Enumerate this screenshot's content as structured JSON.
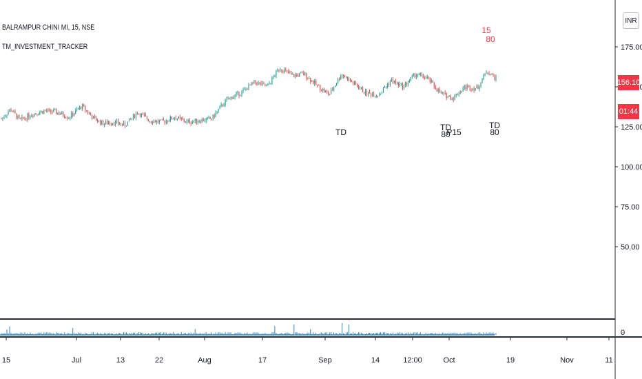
{
  "legend": {
    "symbol": "BALRAMPUR CHINI MI, 15, NSE",
    "indicator": "TM_INVESTMENT_TRACKER"
  },
  "price_tag": "156.10",
  "countdown_tag": "01:44",
  "currency_button": "INR",
  "colors": {
    "up": "#26a69a",
    "down": "#ef5350",
    "price_tag": "#f23645",
    "volume": "#2e86c1",
    "marker_red": "#f23645"
  },
  "chart_data": {
    "type": "line",
    "subtype": "candlestick",
    "title": "BALRAMPUR CHINI MI, 15, NSE",
    "y_ticks": [
      "175.00",
      "150.00",
      "125.00",
      "100.00",
      "75.00",
      "50.00"
    ],
    "y_tick_values": [
      175,
      150,
      125,
      100,
      75,
      50
    ],
    "ylim": [
      41,
      196
    ],
    "x_ticks": [
      "15",
      "Jul",
      "13",
      "22",
      "Aug",
      "17",
      "Sep",
      "14",
      "12:00",
      "Oct",
      "19",
      "Nov",
      "11"
    ],
    "price_path": {
      "x_index": [
        0,
        3,
        6,
        10,
        14,
        18,
        22,
        26,
        30,
        33,
        36,
        40,
        44,
        48,
        52,
        56,
        60,
        64,
        68,
        72,
        74,
        78,
        82,
        86,
        90,
        94,
        98,
        102,
        106,
        110,
        114,
        118,
        122,
        126,
        130,
        134,
        138,
        142,
        146,
        150,
        154,
        157,
        160
      ],
      "values": [
        130,
        136,
        129,
        133,
        135,
        134,
        131,
        138,
        130,
        127,
        128,
        126,
        134,
        129,
        128,
        131,
        128,
        129,
        130,
        140,
        143,
        147,
        153,
        150,
        162,
        157,
        158,
        151,
        145,
        158,
        152,
        146,
        145,
        154,
        150,
        158,
        155,
        146,
        143,
        150,
        149,
        160,
        155
      ]
    },
    "last_price": 156.1,
    "markers": [
      {
        "text": "TD",
        "color": "black"
      },
      {
        "text": "TD",
        "color": "black"
      },
      {
        "text": "80",
        "color": "black"
      },
      {
        "text": "P15",
        "color": "black"
      },
      {
        "text": "TD",
        "color": "black"
      },
      {
        "text": "80",
        "color": "black"
      },
      {
        "text": "15",
        "color": "red"
      },
      {
        "text": "80",
        "color": "red"
      }
    ],
    "volume_axis_tick": "0",
    "grid": false
  }
}
